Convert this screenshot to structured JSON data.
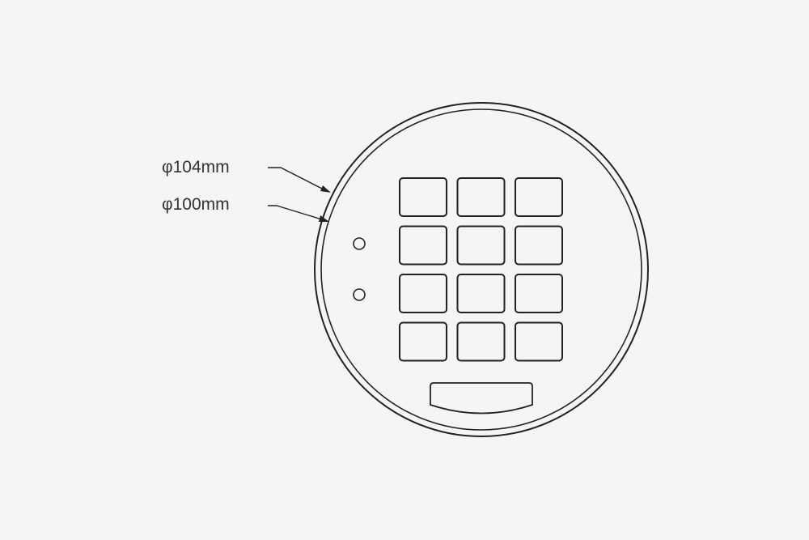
{
  "colors": {
    "background": "#f5f5f5",
    "stroke": "#222222",
    "text": "#333333"
  },
  "dimensions": {
    "outer_label": "φ104mm",
    "inner_label": "φ100mm"
  },
  "keypad": {
    "rows": 4,
    "columns": 3
  },
  "indicator_lights": 2
}
